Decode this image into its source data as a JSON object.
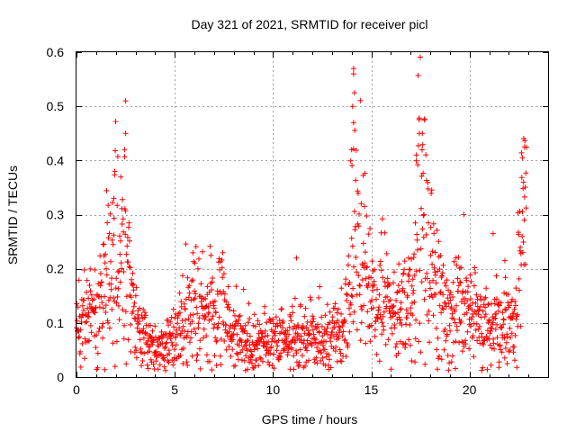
{
  "chart_data": {
    "type": "scatter",
    "title": "Day 321 of 2021, SRMTID for receiver picl",
    "xlabel": "GPS time / hours",
    "ylabel": "SRMTID / TECUs",
    "xlim": [
      0,
      24
    ],
    "ylim": [
      0,
      0.6
    ],
    "xticks": [
      0,
      5,
      10,
      15,
      20
    ],
    "xtick_labels": [
      "0",
      "5",
      "10",
      "15",
      "20"
    ],
    "yticks": [
      0,
      0.1,
      0.2,
      0.3,
      0.4,
      0.5,
      0.6
    ],
    "ytick_labels": [
      "0",
      "0.1",
      "0.2",
      "0.3",
      "0.4",
      "0.5",
      "0.6"
    ],
    "grid": true,
    "marker": "+",
    "color": "#ff0000",
    "profile": [
      [
        0.0,
        0.09
      ],
      [
        0.5,
        0.11
      ],
      [
        1.0,
        0.12
      ],
      [
        1.3,
        0.14
      ],
      [
        1.8,
        0.2
      ],
      [
        2.2,
        0.27
      ],
      [
        2.5,
        0.24
      ],
      [
        2.8,
        0.15
      ],
      [
        3.1,
        0.09
      ],
      [
        3.5,
        0.065
      ],
      [
        4.0,
        0.06
      ],
      [
        4.5,
        0.055
      ],
      [
        4.9,
        0.07
      ],
      [
        5.2,
        0.1
      ],
      [
        5.6,
        0.12
      ],
      [
        6.0,
        0.13
      ],
      [
        6.5,
        0.11
      ],
      [
        7.0,
        0.14
      ],
      [
        7.3,
        0.15
      ],
      [
        7.6,
        0.1
      ],
      [
        8.2,
        0.08
      ],
      [
        9.0,
        0.065
      ],
      [
        10.0,
        0.065
      ],
      [
        11.0,
        0.075
      ],
      [
        12.0,
        0.075
      ],
      [
        13.0,
        0.075
      ],
      [
        13.6,
        0.09
      ],
      [
        14.0,
        0.22
      ],
      [
        14.3,
        0.29
      ],
      [
        14.6,
        0.22
      ],
      [
        15.0,
        0.14
      ],
      [
        15.5,
        0.14
      ],
      [
        16.0,
        0.12
      ],
      [
        16.5,
        0.11
      ],
      [
        17.0,
        0.13
      ],
      [
        17.3,
        0.25
      ],
      [
        17.6,
        0.32
      ],
      [
        17.9,
        0.26
      ],
      [
        18.3,
        0.17
      ],
      [
        18.7,
        0.11
      ],
      [
        19.2,
        0.12
      ],
      [
        19.6,
        0.14
      ],
      [
        20.0,
        0.11
      ],
      [
        20.5,
        0.1
      ],
      [
        21.0,
        0.1
      ],
      [
        21.5,
        0.09
      ],
      [
        22.0,
        0.1
      ],
      [
        22.4,
        0.11
      ],
      [
        22.6,
        0.22
      ],
      [
        22.8,
        0.26
      ]
    ],
    "noise_fraction": 0.42,
    "outliers": [
      [
        2.5,
        0.51
      ],
      [
        2.5,
        0.45
      ],
      [
        2.45,
        0.42
      ],
      [
        1.95,
        0.38
      ],
      [
        1.9,
        0.33
      ],
      [
        14.1,
        0.57
      ],
      [
        14.1,
        0.56
      ],
      [
        14.15,
        0.525
      ],
      [
        14.05,
        0.5
      ],
      [
        14.1,
        0.47
      ],
      [
        14.0,
        0.42
      ],
      [
        17.7,
        0.475
      ],
      [
        17.6,
        0.45
      ],
      [
        17.45,
        0.45
      ],
      [
        17.3,
        0.41
      ],
      [
        22.8,
        0.425
      ],
      [
        22.7,
        0.405
      ],
      [
        22.75,
        0.36
      ],
      [
        11.2,
        0.22
      ],
      [
        21.2,
        0.265
      ],
      [
        21.8,
        0.215
      ],
      [
        16.9,
        0.22
      ],
      [
        21.5,
        0.018
      ],
      [
        8.6,
        0.012
      ]
    ],
    "num_points": 1450,
    "t_end": 22.9
  }
}
